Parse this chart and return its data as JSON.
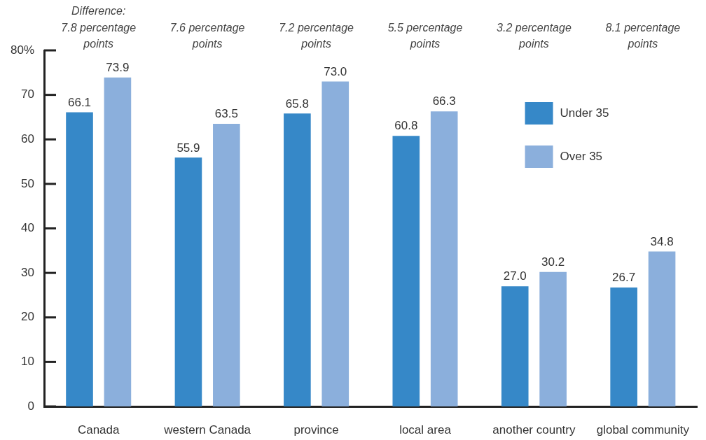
{
  "chart_data": {
    "type": "bar",
    "categories": [
      "Canada",
      "western Canada",
      "province",
      "local area",
      "another country",
      "global community"
    ],
    "series": [
      {
        "name": "Under 35",
        "color": "#3688c8",
        "values": [
          66.1,
          55.9,
          65.8,
          60.8,
          27.0,
          26.7
        ],
        "value_labels": [
          "66.1",
          "55.9",
          "65.8",
          "60.8",
          "27.0",
          "26.7"
        ]
      },
      {
        "name": "Over 35",
        "color": "#8bafdc",
        "values": [
          73.9,
          63.5,
          73.0,
          66.3,
          30.2,
          34.8
        ],
        "value_labels": [
          "73.9",
          "63.5",
          "73.0",
          "66.3",
          "30.2",
          "34.8"
        ]
      }
    ],
    "annotations": [
      "Difference:\n7.8 percentage points",
      "7.6 percentage points",
      "7.2 percentage points",
      "5.5 percentage points",
      "3.2 percentage points",
      "8.1 percentage points"
    ],
    "ylim": [
      0,
      80
    ],
    "yticks": [
      0,
      10,
      20,
      30,
      40,
      50,
      60,
      70,
      {
        "value": 80,
        "label": "80%"
      }
    ],
    "grid": false,
    "legend": "top right"
  }
}
